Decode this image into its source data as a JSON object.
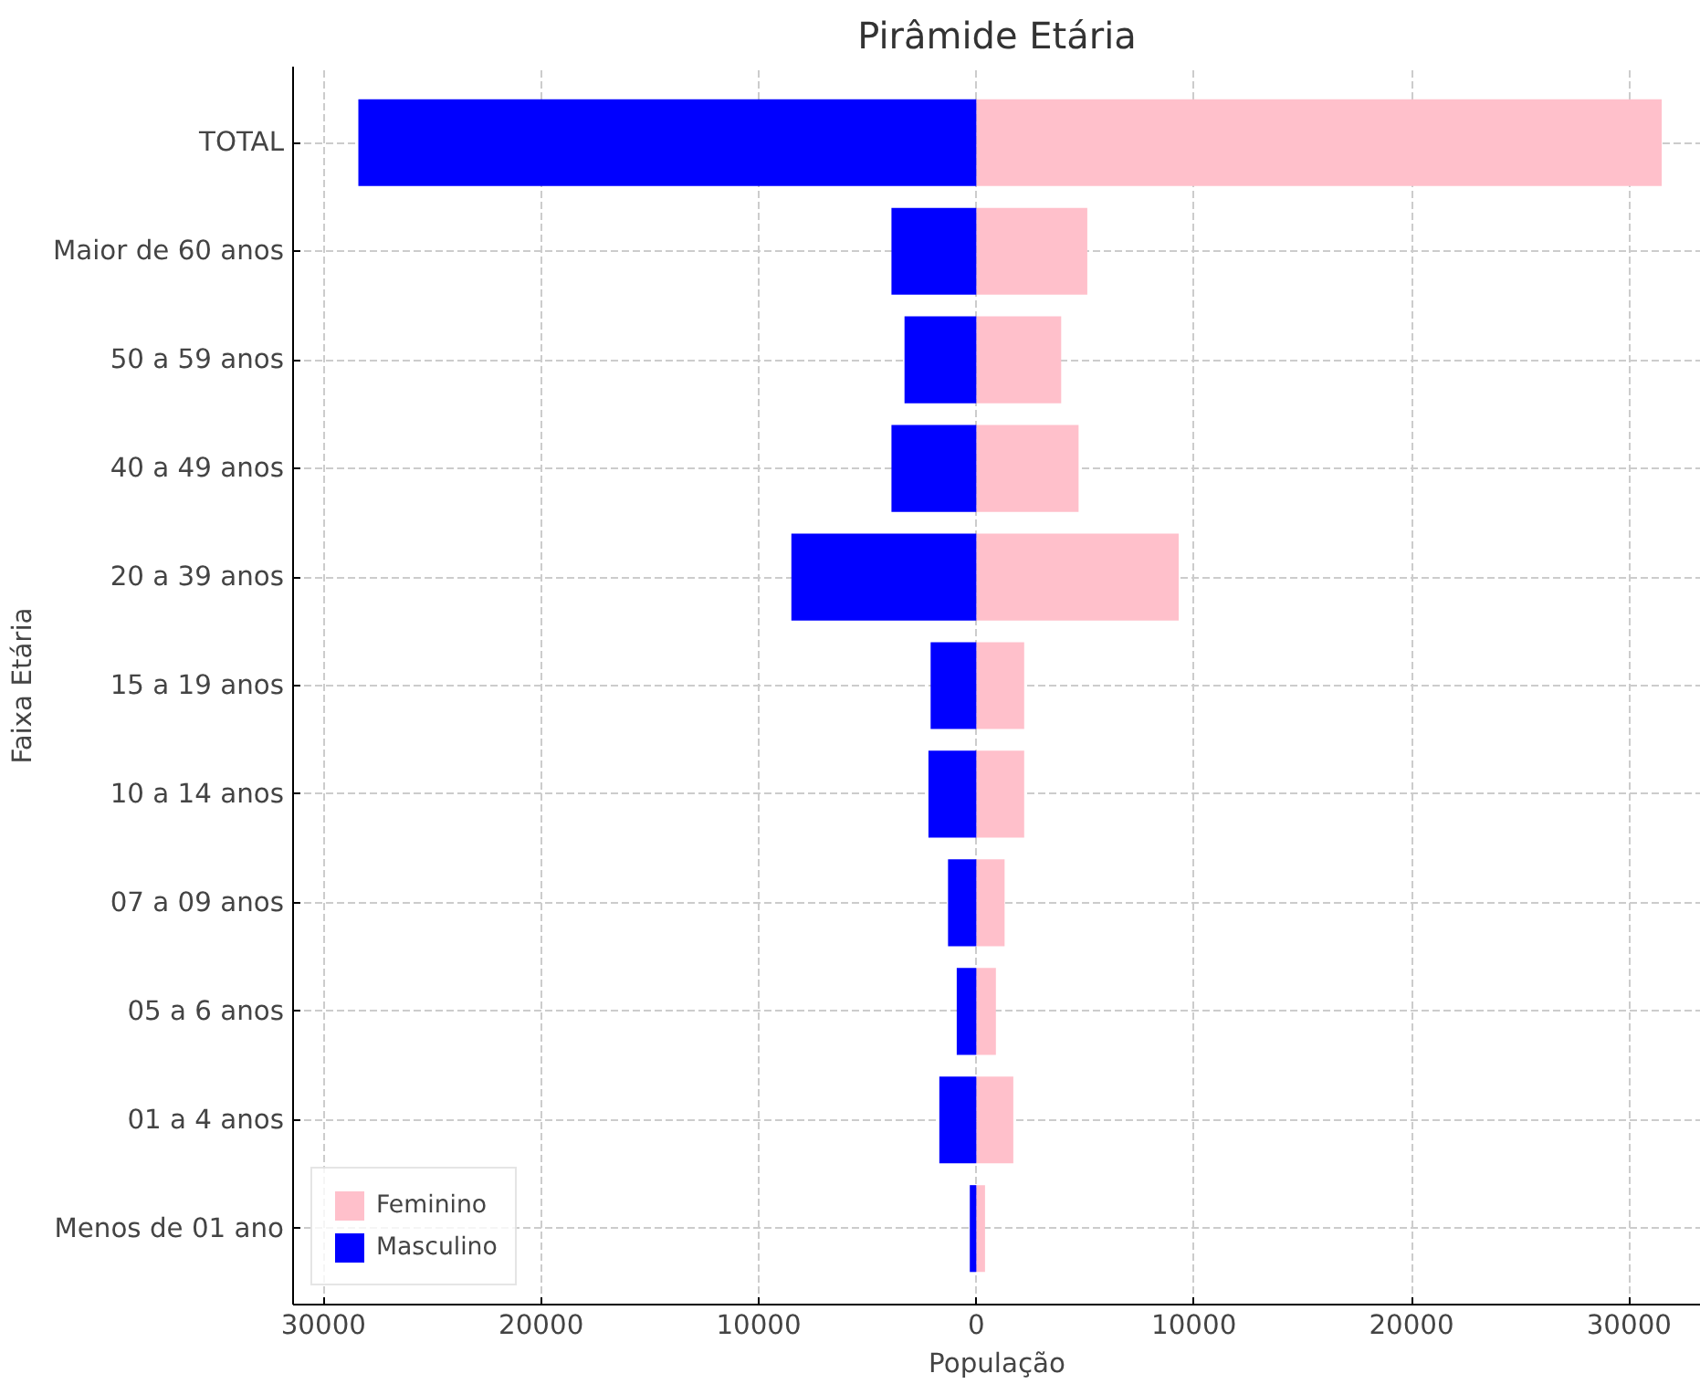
{
  "chart_data": {
    "type": "bar",
    "orientation": "horizontal",
    "title": "Pirâmide Etária",
    "xlabel": "População",
    "ylabel": "Faixa Etária",
    "categories": [
      "TOTAL",
      "Maior de 60 anos",
      "50 a 59 anos",
      "40 a 49 anos",
      "20 a 39 anos",
      "15 a 19 anos",
      "10 a 14 anos",
      "07 a 09 anos",
      "05 a 6 anos",
      "01 a 4 anos",
      "Menos de 01 ano"
    ],
    "series": [
      {
        "name": "Feminino",
        "color": "#ffc0cb",
        "values": [
          31500,
          5100,
          3900,
          4700,
          9300,
          2200,
          2200,
          1300,
          900,
          1700,
          400
        ]
      },
      {
        "name": "Masculino",
        "color": "#0000ff",
        "values": [
          -28400,
          -3900,
          -3300,
          -3900,
          -8500,
          -2100,
          -2200,
          -1300,
          -900,
          -1700,
          -300
        ]
      }
    ],
    "stacked": true,
    "xlim": [
      -31400,
      33300
    ],
    "xticks": [
      {
        "value": -30000,
        "label": "30000"
      },
      {
        "value": -20000,
        "label": "20000"
      },
      {
        "value": -10000,
        "label": "10000"
      },
      0,
      10000,
      20000,
      30000
    ],
    "grid": true,
    "legend": "bottom left"
  }
}
